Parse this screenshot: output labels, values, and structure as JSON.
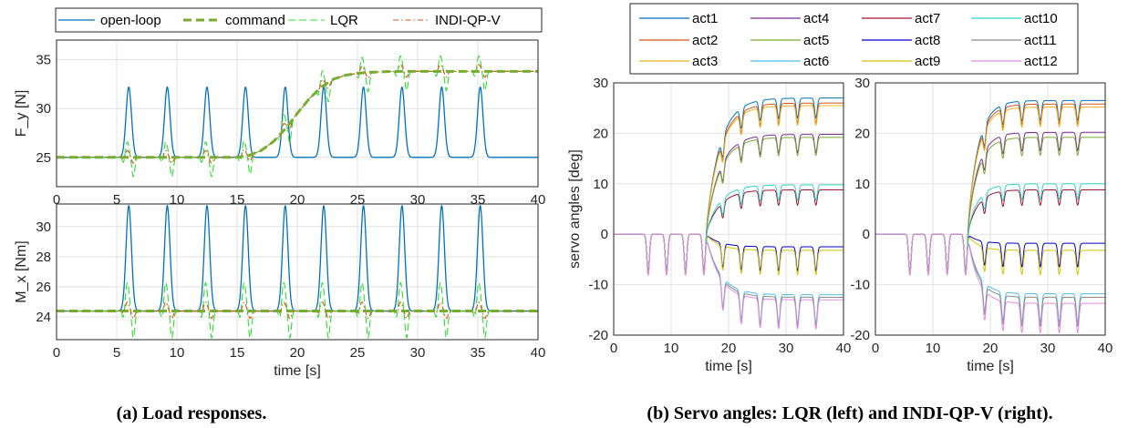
{
  "colors": {
    "open_loop": "#0072BD",
    "command": "#77AC30",
    "lqr": "#33DD33",
    "indi": "#D95319",
    "act1": "#0072BD",
    "act2": "#D95319",
    "act3": "#EDB120",
    "act4": "#7E2F8E",
    "act5": "#77AC30",
    "act6": "#4DBEEE",
    "act7": "#A2142F",
    "act8": "#0000C8",
    "act9": "#D4C400",
    "act10": "#2ED4C8",
    "act11": "#8C8C8C",
    "act12": "#E58BE0"
  },
  "chart_data": [
    {
      "type": "line",
      "panel": "load-fy",
      "ylabel": "F_y [N]",
      "xlabel": "",
      "xlim": [
        0,
        40
      ],
      "ylim": [
        22,
        37
      ],
      "xticks": [
        0,
        5,
        10,
        15,
        20,
        25,
        30,
        35,
        40
      ],
      "yticks": [
        25,
        30,
        35
      ],
      "grid": true,
      "legend": {
        "placement": "top",
        "entries": [
          "open-loop",
          "command",
          "LQR",
          "INDI-QP-V"
        ]
      },
      "series": [
        {
          "name": "open-loop",
          "peaks_t": [
            6.0,
            9.2,
            12.5,
            15.7,
            19.0,
            22.2,
            25.5,
            28.7,
            32.0,
            35.2
          ],
          "peak_value": 32.2,
          "x": [
            0,
            16,
            19,
            22,
            25,
            30,
            40
          ],
          "y": [
            25,
            25,
            25,
            25,
            25,
            25,
            25
          ]
        },
        {
          "name": "command",
          "x": [
            0,
            15,
            16,
            17,
            18,
            19,
            20,
            21,
            22,
            23,
            24,
            25,
            26,
            27,
            28,
            30,
            40
          ],
          "y": [
            25,
            25,
            25.2,
            25.7,
            26.6,
            27.9,
            29.5,
            31.0,
            32.2,
            33.0,
            33.4,
            33.6,
            33.7,
            33.75,
            33.8,
            33.8,
            33.8
          ]
        },
        {
          "name": "LQR",
          "x": [
            0,
            40
          ],
          "y": [
            25,
            33.8
          ]
        },
        {
          "name": "INDI-QP-V",
          "x": [
            0,
            40
          ],
          "y": [
            25,
            33.8
          ]
        }
      ]
    },
    {
      "type": "line",
      "panel": "load-mx",
      "ylabel": "M_x [Nm]",
      "xlabel": "time [s]",
      "xlim": [
        0,
        40
      ],
      "ylim": [
        22.5,
        31.5
      ],
      "xticks": [
        0,
        5,
        10,
        15,
        20,
        25,
        30,
        35,
        40
      ],
      "yticks": [
        24,
        26,
        28,
        30
      ],
      "grid": true,
      "series": [
        {
          "name": "open-loop",
          "peaks_t": [
            6.0,
            9.2,
            12.5,
            15.7,
            19.0,
            22.2,
            25.5,
            28.7,
            32.0,
            35.2
          ],
          "peak_value": 31.4,
          "x": [
            0,
            40
          ],
          "y": [
            24.4,
            24.4
          ]
        },
        {
          "name": "command",
          "x": [
            0,
            40
          ],
          "y": [
            24.4,
            24.4
          ]
        },
        {
          "name": "LQR",
          "x": [
            0,
            40
          ],
          "y": [
            24.4,
            24.4
          ]
        },
        {
          "name": "INDI-QP-V",
          "x": [
            0,
            40
          ],
          "y": [
            24.4,
            24.4
          ]
        }
      ]
    },
    {
      "type": "line",
      "panel": "servo-lqr",
      "ylabel": "servo angles [deg]",
      "xlabel": "time [s]",
      "xlim": [
        0,
        40
      ],
      "ylim": [
        -20,
        30
      ],
      "xticks": [
        0,
        10,
        20,
        30,
        40
      ],
      "yticks": [
        -20,
        -10,
        0,
        10,
        20,
        30
      ],
      "grid": true,
      "legend": {
        "placement": "top",
        "entries": [
          "act1",
          "act2",
          "act3",
          "act4",
          "act5",
          "act6",
          "act7",
          "act8",
          "act9",
          "act10",
          "act11",
          "act12"
        ]
      },
      "series": [
        {
          "name": "act1",
          "final": 27.0
        },
        {
          "name": "act2",
          "final": 26.0
        },
        {
          "name": "act3",
          "final": 25.5
        },
        {
          "name": "act4",
          "final": 19.8
        },
        {
          "name": "act5",
          "final": 19.2
        },
        {
          "name": "act6",
          "final": -12.0
        },
        {
          "name": "act7",
          "final": 8.8
        },
        {
          "name": "act8",
          "final": -2.5
        },
        {
          "name": "act9",
          "final": -3.2
        },
        {
          "name": "act10",
          "final": 9.8
        },
        {
          "name": "act11",
          "final": -12.5
        },
        {
          "name": "act12",
          "final": -13.0
        }
      ]
    },
    {
      "type": "line",
      "panel": "servo-indi",
      "ylabel": "",
      "xlabel": "time [s]",
      "xlim": [
        0,
        40
      ],
      "ylim": [
        -20,
        30
      ],
      "xticks": [
        0,
        10,
        20,
        30,
        40
      ],
      "yticks": [
        -20,
        -10,
        0,
        10,
        20,
        30
      ],
      "grid": true,
      "series": [
        {
          "name": "act1",
          "final": 26.5
        },
        {
          "name": "act2",
          "final": 25.8
        },
        {
          "name": "act3",
          "final": 25.2
        },
        {
          "name": "act4",
          "final": 20.2
        },
        {
          "name": "act5",
          "final": 19.2
        },
        {
          "name": "act6",
          "final": -11.8
        },
        {
          "name": "act7",
          "final": 8.8
        },
        {
          "name": "act8",
          "final": -1.8
        },
        {
          "name": "act9",
          "final": -3.2
        },
        {
          "name": "act10",
          "final": 10.0
        },
        {
          "name": "act11",
          "final": -12.5
        },
        {
          "name": "act12",
          "final": -13.7
        }
      ]
    }
  ],
  "captions": {
    "a": "(a) Load responses.",
    "b": "(b) Servo angles: LQR (left) and INDI-QP-V (right)."
  }
}
